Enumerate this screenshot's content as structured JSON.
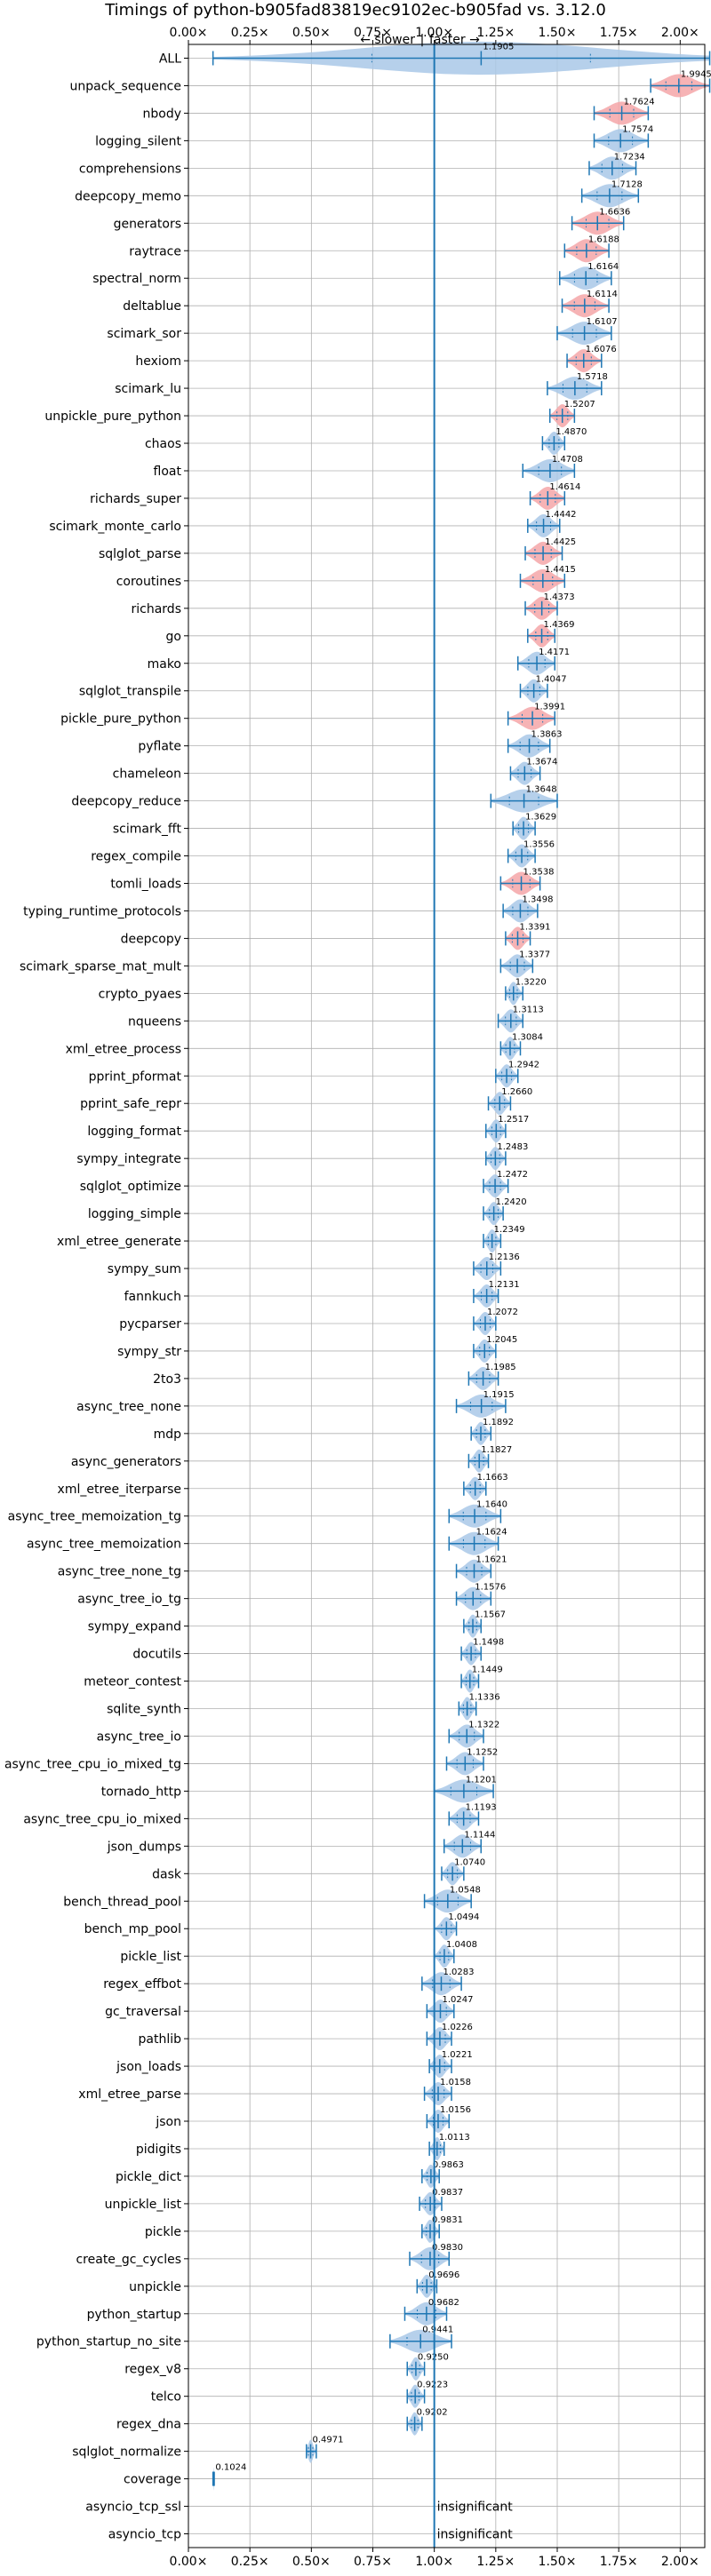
{
  "chart_data": {
    "type": "violin",
    "title": "Timings of python-b905fad83819ec9102ec-b905fad vs. 3.12.0",
    "direction_left": "← slower",
    "direction_separator": "|",
    "direction_right": "faster →",
    "xlim": [
      0.0,
      2.1
    ],
    "xticks": [
      0.0,
      0.25,
      0.5,
      0.75,
      1.0,
      1.25,
      1.5,
      1.75,
      2.0
    ],
    "xtick_labels": [
      "0.00×",
      "0.25×",
      "0.50×",
      "0.75×",
      "1.00×",
      "1.25×",
      "1.50×",
      "1.75×",
      "2.00×"
    ],
    "reference_line": 1.0,
    "grid": true,
    "colors": {
      "faster": "#a9c8e8",
      "slower": "#f4a6a8",
      "whisker": "#1f77b4",
      "grid": "#b0b0b0"
    },
    "benchmarks": [
      {
        "name": "ALL",
        "value": 1.1905,
        "label": "1.1905",
        "min": 0.1,
        "max": 2.12,
        "color": "blue",
        "width": 0.6
      },
      {
        "name": "unpack_sequence",
        "value": 1.9945,
        "label": "1.9945",
        "min": 1.88,
        "max": 2.12,
        "color": "red"
      },
      {
        "name": "nbody",
        "value": 1.7624,
        "label": "1.7624",
        "min": 1.65,
        "max": 1.87,
        "color": "red"
      },
      {
        "name": "logging_silent",
        "value": 1.7574,
        "label": "1.7574",
        "min": 1.65,
        "max": 1.87,
        "color": "blue"
      },
      {
        "name": "comprehensions",
        "value": 1.7234,
        "label": "1.7234",
        "min": 1.63,
        "max": 1.82,
        "color": "blue"
      },
      {
        "name": "deepcopy_memo",
        "value": 1.7128,
        "label": "1.7128",
        "min": 1.6,
        "max": 1.83,
        "color": "blue"
      },
      {
        "name": "generators",
        "value": 1.6636,
        "label": "1.6636",
        "min": 1.56,
        "max": 1.77,
        "color": "red"
      },
      {
        "name": "raytrace",
        "value": 1.6188,
        "label": "1.6188",
        "min": 1.53,
        "max": 1.71,
        "color": "red"
      },
      {
        "name": "spectral_norm",
        "value": 1.6164,
        "label": "1.6164",
        "min": 1.51,
        "max": 1.72,
        "color": "blue"
      },
      {
        "name": "deltablue",
        "value": 1.6114,
        "label": "1.6114",
        "min": 1.52,
        "max": 1.71,
        "color": "red"
      },
      {
        "name": "scimark_sor",
        "value": 1.6107,
        "label": "1.6107",
        "min": 1.5,
        "max": 1.72,
        "color": "blue"
      },
      {
        "name": "hexiom",
        "value": 1.6076,
        "label": "1.6076",
        "min": 1.54,
        "max": 1.68,
        "color": "red"
      },
      {
        "name": "scimark_lu",
        "value": 1.5718,
        "label": "1.5718",
        "min": 1.46,
        "max": 1.68,
        "color": "blue"
      },
      {
        "name": "unpickle_pure_python",
        "value": 1.5207,
        "label": "1.5207",
        "min": 1.47,
        "max": 1.57,
        "color": "red"
      },
      {
        "name": "chaos",
        "value": 1.487,
        "label": "1.4870",
        "min": 1.44,
        "max": 1.53,
        "color": "blue"
      },
      {
        "name": "float",
        "value": 1.4708,
        "label": "1.4708",
        "min": 1.36,
        "max": 1.57,
        "color": "blue"
      },
      {
        "name": "richards_super",
        "value": 1.4614,
        "label": "1.4614",
        "min": 1.39,
        "max": 1.53,
        "color": "red"
      },
      {
        "name": "scimark_monte_carlo",
        "value": 1.4442,
        "label": "1.4442",
        "min": 1.38,
        "max": 1.51,
        "color": "blue"
      },
      {
        "name": "sqlglot_parse",
        "value": 1.4425,
        "label": "1.4425",
        "min": 1.37,
        "max": 1.52,
        "color": "red"
      },
      {
        "name": "coroutines",
        "value": 1.4415,
        "label": "1.4415",
        "min": 1.35,
        "max": 1.53,
        "color": "red"
      },
      {
        "name": "richards",
        "value": 1.4373,
        "label": "1.4373",
        "min": 1.37,
        "max": 1.5,
        "color": "red"
      },
      {
        "name": "go",
        "value": 1.4369,
        "label": "1.4369",
        "min": 1.38,
        "max": 1.49,
        "color": "red"
      },
      {
        "name": "mako",
        "value": 1.4171,
        "label": "1.4171",
        "min": 1.34,
        "max": 1.49,
        "color": "blue"
      },
      {
        "name": "sqlglot_transpile",
        "value": 1.4047,
        "label": "1.4047",
        "min": 1.35,
        "max": 1.46,
        "color": "blue"
      },
      {
        "name": "pickle_pure_python",
        "value": 1.3991,
        "label": "1.3991",
        "min": 1.3,
        "max": 1.49,
        "color": "red"
      },
      {
        "name": "pyflate",
        "value": 1.3863,
        "label": "1.3863",
        "min": 1.3,
        "max": 1.47,
        "color": "blue"
      },
      {
        "name": "chameleon",
        "value": 1.3674,
        "label": "1.3674",
        "min": 1.31,
        "max": 1.43,
        "color": "blue"
      },
      {
        "name": "deepcopy_reduce",
        "value": 1.3648,
        "label": "1.3648",
        "min": 1.23,
        "max": 1.5,
        "color": "blue"
      },
      {
        "name": "scimark_fft",
        "value": 1.3629,
        "label": "1.3629",
        "min": 1.32,
        "max": 1.41,
        "color": "blue"
      },
      {
        "name": "regex_compile",
        "value": 1.3556,
        "label": "1.3556",
        "min": 1.3,
        "max": 1.41,
        "color": "blue"
      },
      {
        "name": "tomli_loads",
        "value": 1.3538,
        "label": "1.3538",
        "min": 1.27,
        "max": 1.43,
        "color": "red"
      },
      {
        "name": "typing_runtime_protocols",
        "value": 1.3498,
        "label": "1.3498",
        "min": 1.28,
        "max": 1.42,
        "color": "blue"
      },
      {
        "name": "deepcopy",
        "value": 1.3391,
        "label": "1.3391",
        "min": 1.29,
        "max": 1.39,
        "color": "red"
      },
      {
        "name": "scimark_sparse_mat_mult",
        "value": 1.3377,
        "label": "1.3377",
        "min": 1.27,
        "max": 1.4,
        "color": "blue"
      },
      {
        "name": "crypto_pyaes",
        "value": 1.322,
        "label": "1.3220",
        "min": 1.29,
        "max": 1.36,
        "color": "blue"
      },
      {
        "name": "nqueens",
        "value": 1.3113,
        "label": "1.3113",
        "min": 1.26,
        "max": 1.36,
        "color": "blue"
      },
      {
        "name": "xml_etree_process",
        "value": 1.3084,
        "label": "1.3084",
        "min": 1.27,
        "max": 1.35,
        "color": "blue"
      },
      {
        "name": "pprint_pformat",
        "value": 1.2942,
        "label": "1.2942",
        "min": 1.25,
        "max": 1.34,
        "color": "blue"
      },
      {
        "name": "pprint_safe_repr",
        "value": 1.266,
        "label": "1.2660",
        "min": 1.22,
        "max": 1.31,
        "color": "blue"
      },
      {
        "name": "logging_format",
        "value": 1.2517,
        "label": "1.2517",
        "min": 1.21,
        "max": 1.29,
        "color": "blue"
      },
      {
        "name": "sympy_integrate",
        "value": 1.2483,
        "label": "1.2483",
        "min": 1.21,
        "max": 1.29,
        "color": "blue"
      },
      {
        "name": "sqlglot_optimize",
        "value": 1.2472,
        "label": "1.2472",
        "min": 1.2,
        "max": 1.3,
        "color": "blue"
      },
      {
        "name": "logging_simple",
        "value": 1.242,
        "label": "1.2420",
        "min": 1.2,
        "max": 1.28,
        "color": "blue"
      },
      {
        "name": "xml_etree_generate",
        "value": 1.2349,
        "label": "1.2349",
        "min": 1.2,
        "max": 1.27,
        "color": "blue"
      },
      {
        "name": "sympy_sum",
        "value": 1.2136,
        "label": "1.2136",
        "min": 1.16,
        "max": 1.27,
        "color": "blue"
      },
      {
        "name": "fannkuch",
        "value": 1.2131,
        "label": "1.2131",
        "min": 1.16,
        "max": 1.26,
        "color": "blue"
      },
      {
        "name": "pycparser",
        "value": 1.2072,
        "label": "1.2072",
        "min": 1.16,
        "max": 1.25,
        "color": "blue"
      },
      {
        "name": "sympy_str",
        "value": 1.2045,
        "label": "1.2045",
        "min": 1.16,
        "max": 1.25,
        "color": "blue"
      },
      {
        "name": "2to3",
        "value": 1.1985,
        "label": "1.1985",
        "min": 1.14,
        "max": 1.26,
        "color": "blue"
      },
      {
        "name": "async_tree_none",
        "value": 1.1915,
        "label": "1.1915",
        "min": 1.09,
        "max": 1.29,
        "color": "blue"
      },
      {
        "name": "mdp",
        "value": 1.1892,
        "label": "1.1892",
        "min": 1.15,
        "max": 1.23,
        "color": "blue"
      },
      {
        "name": "async_generators",
        "value": 1.1827,
        "label": "1.1827",
        "min": 1.14,
        "max": 1.22,
        "color": "blue"
      },
      {
        "name": "xml_etree_iterparse",
        "value": 1.1663,
        "label": "1.1663",
        "min": 1.12,
        "max": 1.21,
        "color": "blue"
      },
      {
        "name": "async_tree_memoization_tg",
        "value": 1.164,
        "label": "1.1640",
        "min": 1.06,
        "max": 1.27,
        "color": "blue"
      },
      {
        "name": "async_tree_memoization",
        "value": 1.1624,
        "label": "1.1624",
        "min": 1.06,
        "max": 1.26,
        "color": "blue"
      },
      {
        "name": "async_tree_none_tg",
        "value": 1.1621,
        "label": "1.1621",
        "min": 1.09,
        "max": 1.23,
        "color": "blue"
      },
      {
        "name": "async_tree_io_tg",
        "value": 1.1576,
        "label": "1.1576",
        "min": 1.09,
        "max": 1.23,
        "color": "blue"
      },
      {
        "name": "sympy_expand",
        "value": 1.1567,
        "label": "1.1567",
        "min": 1.12,
        "max": 1.19,
        "color": "blue"
      },
      {
        "name": "docutils",
        "value": 1.1498,
        "label": "1.1498",
        "min": 1.11,
        "max": 1.19,
        "color": "blue"
      },
      {
        "name": "meteor_contest",
        "value": 1.1449,
        "label": "1.1449",
        "min": 1.11,
        "max": 1.18,
        "color": "blue"
      },
      {
        "name": "sqlite_synth",
        "value": 1.1336,
        "label": "1.1336",
        "min": 1.1,
        "max": 1.17,
        "color": "blue"
      },
      {
        "name": "async_tree_io",
        "value": 1.1322,
        "label": "1.1322",
        "min": 1.06,
        "max": 1.2,
        "color": "blue"
      },
      {
        "name": "async_tree_cpu_io_mixed_tg",
        "value": 1.1252,
        "label": "1.1252",
        "min": 1.05,
        "max": 1.2,
        "color": "blue"
      },
      {
        "name": "tornado_http",
        "value": 1.1201,
        "label": "1.1201",
        "min": 1.0,
        "max": 1.24,
        "color": "blue"
      },
      {
        "name": "async_tree_cpu_io_mixed",
        "value": 1.1193,
        "label": "1.1193",
        "min": 1.06,
        "max": 1.18,
        "color": "blue"
      },
      {
        "name": "json_dumps",
        "value": 1.1144,
        "label": "1.1144",
        "min": 1.04,
        "max": 1.19,
        "color": "blue"
      },
      {
        "name": "dask",
        "value": 1.074,
        "label": "1.0740",
        "min": 1.03,
        "max": 1.12,
        "color": "blue"
      },
      {
        "name": "bench_thread_pool",
        "value": 1.0548,
        "label": "1.0548",
        "min": 0.96,
        "max": 1.15,
        "color": "blue"
      },
      {
        "name": "bench_mp_pool",
        "value": 1.0494,
        "label": "1.0494",
        "min": 1.0,
        "max": 1.09,
        "color": "blue"
      },
      {
        "name": "pickle_list",
        "value": 1.0408,
        "label": "1.0408",
        "min": 1.0,
        "max": 1.08,
        "color": "blue"
      },
      {
        "name": "regex_effbot",
        "value": 1.0283,
        "label": "1.0283",
        "min": 0.95,
        "max": 1.11,
        "color": "blue"
      },
      {
        "name": "gc_traversal",
        "value": 1.0247,
        "label": "1.0247",
        "min": 0.97,
        "max": 1.08,
        "color": "blue"
      },
      {
        "name": "pathlib",
        "value": 1.0226,
        "label": "1.0226",
        "min": 0.97,
        "max": 1.07,
        "color": "blue"
      },
      {
        "name": "json_loads",
        "value": 1.0221,
        "label": "1.0221",
        "min": 0.98,
        "max": 1.07,
        "color": "blue"
      },
      {
        "name": "xml_etree_parse",
        "value": 1.0158,
        "label": "1.0158",
        "min": 0.96,
        "max": 1.07,
        "color": "blue"
      },
      {
        "name": "json",
        "value": 1.0156,
        "label": "1.0156",
        "min": 0.97,
        "max": 1.06,
        "color": "blue"
      },
      {
        "name": "pidigits",
        "value": 1.0113,
        "label": "1.0113",
        "min": 0.98,
        "max": 1.04,
        "color": "blue"
      },
      {
        "name": "pickle_dict",
        "value": 0.9863,
        "label": "0.9863",
        "min": 0.95,
        "max": 1.02,
        "color": "blue"
      },
      {
        "name": "unpickle_list",
        "value": 0.9837,
        "label": "0.9837",
        "min": 0.94,
        "max": 1.03,
        "color": "blue"
      },
      {
        "name": "pickle",
        "value": 0.9831,
        "label": "0.9831",
        "min": 0.95,
        "max": 1.02,
        "color": "blue"
      },
      {
        "name": "create_gc_cycles",
        "value": 0.983,
        "label": "0.9830",
        "min": 0.9,
        "max": 1.06,
        "color": "blue"
      },
      {
        "name": "unpickle",
        "value": 0.9696,
        "label": "0.9696",
        "min": 0.93,
        "max": 1.01,
        "color": "blue"
      },
      {
        "name": "python_startup",
        "value": 0.9682,
        "label": "0.9682",
        "min": 0.88,
        "max": 1.05,
        "color": "blue"
      },
      {
        "name": "python_startup_no_site",
        "value": 0.9441,
        "label": "0.9441",
        "min": 0.82,
        "max": 1.07,
        "color": "blue"
      },
      {
        "name": "regex_v8",
        "value": 0.925,
        "label": "0.9250",
        "min": 0.89,
        "max": 0.96,
        "color": "blue"
      },
      {
        "name": "telco",
        "value": 0.9223,
        "label": "0.9223",
        "min": 0.89,
        "max": 0.96,
        "color": "blue"
      },
      {
        "name": "regex_dna",
        "value": 0.9202,
        "label": "0.9202",
        "min": 0.89,
        "max": 0.95,
        "color": "blue"
      },
      {
        "name": "sqlglot_normalize",
        "value": 0.4971,
        "label": "0.4971",
        "min": 0.48,
        "max": 0.52,
        "color": "blue"
      },
      {
        "name": "coverage",
        "value": 0.1024,
        "label": "0.1024",
        "min": 0.1,
        "max": 0.105,
        "color": "blue"
      },
      {
        "name": "asyncio_tcp_ssl",
        "value": null,
        "label": "insignificant"
      },
      {
        "name": "asyncio_tcp",
        "value": null,
        "label": "insignificant"
      }
    ]
  }
}
